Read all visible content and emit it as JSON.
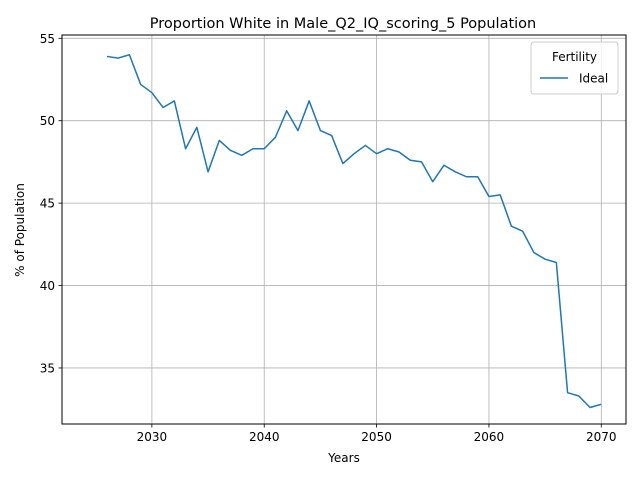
{
  "chart_data": {
    "type": "line",
    "title": "Proportion White in Male_Q2_IQ_scoring_5 Population",
    "xlabel": "Years",
    "ylabel": "% of Population",
    "xlim": [
      2022,
      2072.2
    ],
    "ylim": [
      31.6,
      55.2
    ],
    "xticks": [
      2030,
      2040,
      2050,
      2060,
      2070
    ],
    "yticks": [
      35,
      40,
      45,
      50,
      55
    ],
    "xtick_labels": [
      "2030",
      "2040",
      "2050",
      "2060",
      "2070"
    ],
    "ytick_labels": [
      "35",
      "40",
      "45",
      "50",
      "55"
    ],
    "grid": true,
    "legend": {
      "title": "Fertility",
      "placement": "top-right",
      "entries": [
        "Ideal"
      ]
    },
    "series": [
      {
        "name": "Ideal",
        "color": "#1f77b4",
        "x": [
          2026,
          2027,
          2028,
          2029,
          2030,
          2031,
          2032,
          2033,
          2034,
          2035,
          2036,
          2037,
          2038,
          2039,
          2040,
          2041,
          2042,
          2043,
          2044,
          2045,
          2046,
          2047,
          2048,
          2049,
          2050,
          2051,
          2052,
          2053,
          2054,
          2055,
          2056,
          2057,
          2058,
          2059,
          2060,
          2061,
          2062,
          2063,
          2064,
          2065,
          2066,
          2067,
          2068,
          2069,
          2070
        ],
        "values": [
          53.9,
          53.8,
          54.0,
          52.2,
          51.7,
          50.8,
          51.2,
          48.3,
          49.6,
          46.9,
          48.8,
          48.2,
          47.9,
          48.3,
          48.3,
          49.0,
          50.6,
          49.4,
          51.2,
          49.4,
          49.1,
          47.4,
          48.0,
          48.5,
          48.0,
          48.3,
          48.1,
          47.6,
          47.5,
          46.3,
          47.3,
          46.9,
          46.6,
          46.6,
          45.4,
          45.5,
          43.6,
          43.3,
          42.0,
          41.6,
          41.4,
          33.5,
          33.3,
          32.6,
          32.8
        ]
      }
    ]
  }
}
